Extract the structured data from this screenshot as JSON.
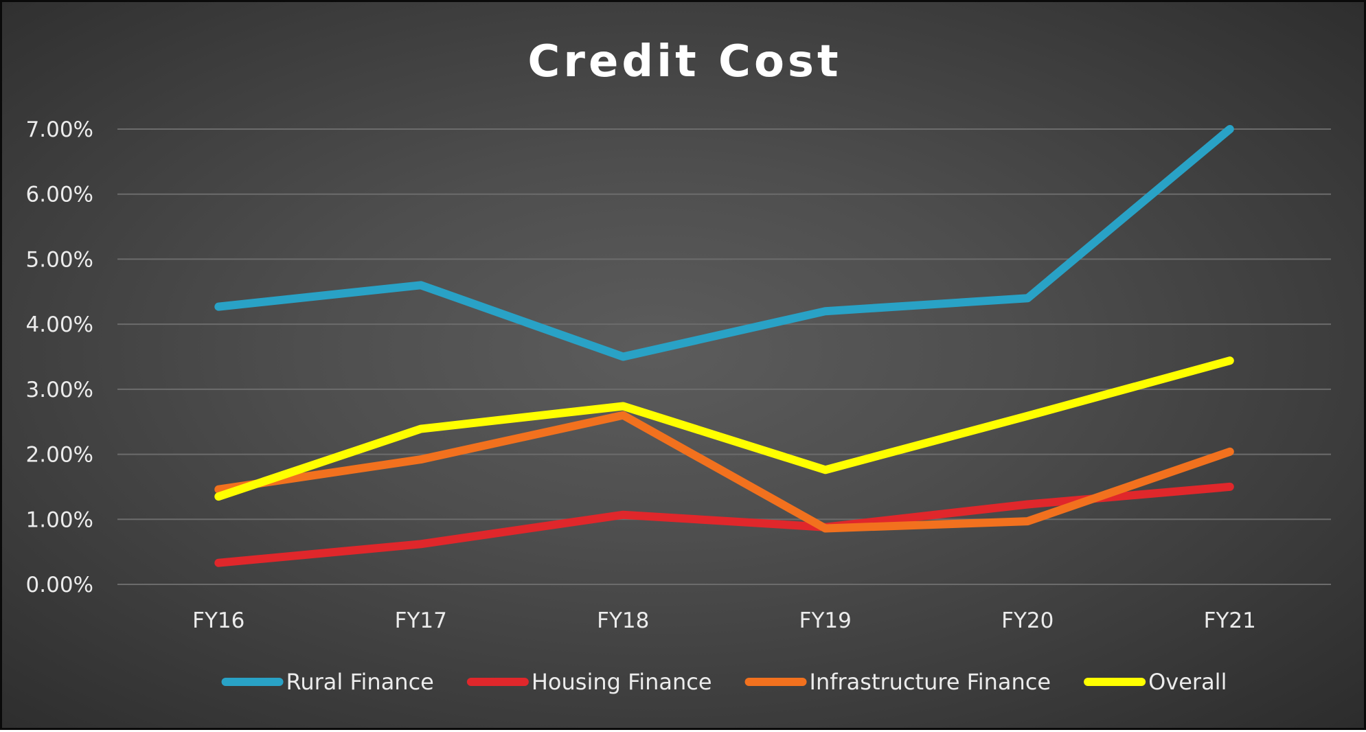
{
  "chart_data": {
    "type": "line",
    "title": "Credit Cost",
    "xlabel": "",
    "ylabel": "",
    "categories": [
      "FY16",
      "FY17",
      "FY18",
      "FY19",
      "FY20",
      "FY21"
    ],
    "ylim": [
      0,
      0.07
    ],
    "yticks": [
      0,
      0.01,
      0.02,
      0.03,
      0.04,
      0.05,
      0.06,
      0.07
    ],
    "ytick_labels": [
      "0.00%",
      "1.00%",
      "2.00%",
      "3.00%",
      "4.00%",
      "5.00%",
      "6.00%",
      "7.00%"
    ],
    "grid": true,
    "legend_position": "bottom",
    "series": [
      {
        "name": "Rural Finance",
        "color": "#29A2C6",
        "values": [
          0.0427,
          0.046,
          0.035,
          0.042,
          0.044,
          0.07
        ]
      },
      {
        "name": "Housing Finance",
        "color": "#E0272B",
        "values": [
          0.0033,
          0.0062,
          0.0107,
          0.0088,
          0.0123,
          0.015
        ]
      },
      {
        "name": "Infrastructure Finance",
        "color": "#F2711E",
        "values": [
          0.0146,
          0.0192,
          0.026,
          0.0086,
          0.0097,
          0.0204
        ]
      },
      {
        "name": "Overall",
        "color": "#FFFF00",
        "values": [
          0.0135,
          0.0239,
          0.0274,
          0.0176,
          0.0259,
          0.0344
        ]
      }
    ]
  }
}
